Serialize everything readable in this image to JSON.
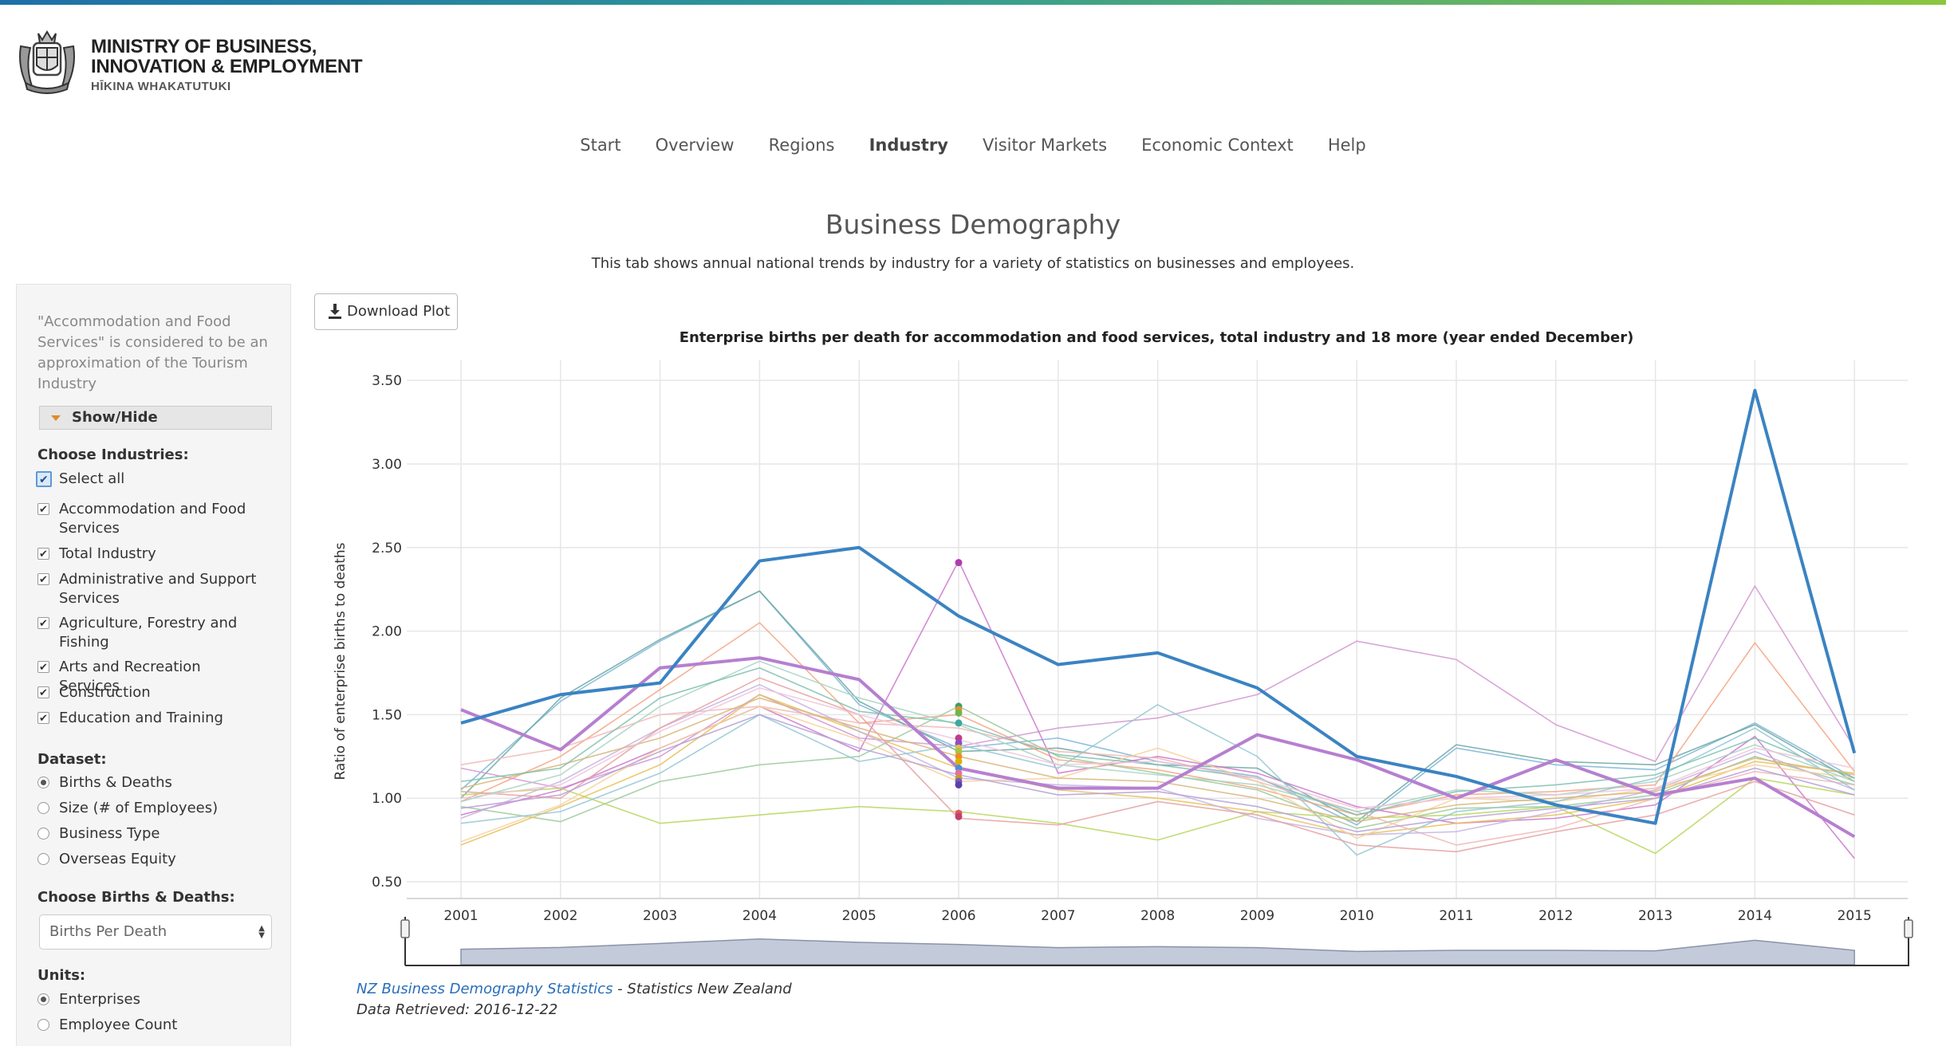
{
  "header": {
    "logo_line1": "MINISTRY OF BUSINESS,",
    "logo_line2": "INNOVATION & EMPLOYMENT",
    "logo_line3": "HĪKINA WHAKATUTUKI"
  },
  "nav": {
    "items": [
      "Start",
      "Overview",
      "Regions",
      "Industry",
      "Visitor Markets",
      "Economic Context",
      "Help"
    ],
    "active": "Industry"
  },
  "page": {
    "title": "Business Demography",
    "subtitle": "This tab shows annual national trends by industry for a variety of statistics on businesses and employees."
  },
  "sidebar": {
    "note": "\"Accommodation and Food Services\" is considered to be an approximation of the Tourism Industry",
    "showhide_label": "Show/Hide",
    "industries_label": "Choose Industries:",
    "select_all_label": "Select all",
    "industries": [
      "Accommodation and Food Services",
      "Total Industry",
      "Administrative and Support Services",
      "Agriculture, Forestry and Fishing",
      "Arts and Recreation Services",
      "Construction",
      "Education and Training"
    ],
    "dataset_label": "Dataset:",
    "datasets": [
      "Births & Deaths",
      "Size (# of Employees)",
      "Business Type",
      "Overseas Equity"
    ],
    "dataset_selected": "Births & Deaths",
    "bd_label": "Choose Births & Deaths:",
    "bd_value": "Births Per Death",
    "units_label": "Units:",
    "units": [
      "Enterprises",
      "Employee Count"
    ],
    "units_selected": "Enterprises"
  },
  "toolbar": {
    "download_label": "Download Plot"
  },
  "chart_data": {
    "type": "line",
    "title": "Enterprise births per death for accommodation and food services, total industry and 18 more (year ended December)",
    "ylabel": "Ratio of enterprise births to deaths",
    "xlabel": "",
    "x": [
      2001,
      2002,
      2003,
      2004,
      2005,
      2006,
      2007,
      2008,
      2009,
      2010,
      2011,
      2012,
      2013,
      2014,
      2015
    ],
    "ylim": [
      0.4,
      3.62
    ],
    "yticks": [
      0.5,
      1.0,
      1.5,
      2.0,
      2.5,
      3.0,
      3.5
    ],
    "ytick_labels": [
      "0.50",
      "1.00",
      "1.50",
      "2.00",
      "2.50",
      "3.00",
      "3.50"
    ],
    "grid": true,
    "series": [
      {
        "color": "#7cb5d9",
        "values": [
          1.05,
          1.58,
          1.94,
          2.24,
          1.56,
          1.3,
          1.36,
          1.22,
          1.13,
          0.84,
          1.3,
          1.2,
          1.17,
          1.45,
          1.12
        ]
      },
      {
        "color": "#69a7a1",
        "values": [
          1.0,
          1.6,
          1.95,
          2.24,
          1.58,
          1.28,
          1.3,
          1.2,
          1.18,
          0.86,
          1.32,
          1.22,
          1.2,
          1.44,
          1.1
        ]
      },
      {
        "color": "#f4a582",
        "values": [
          0.98,
          1.25,
          1.65,
          2.05,
          1.45,
          1.5,
          1.23,
          1.17,
          1.06,
          0.9,
          1.02,
          1.04,
          1.08,
          1.93,
          1.16
        ]
      },
      {
        "color": "#d197d1",
        "values": [
          1.18,
          1.06,
          1.25,
          1.62,
          1.36,
          1.31,
          1.42,
          1.48,
          1.62,
          1.94,
          1.83,
          1.44,
          1.22,
          2.27,
          1.3
        ]
      },
      {
        "color": "#cc77cc",
        "values": [
          0.9,
          1.05,
          1.3,
          1.55,
          1.28,
          2.42,
          1.15,
          1.25,
          1.15,
          0.95,
          0.85,
          0.88,
          0.96,
          1.37,
          0.64
        ]
      },
      {
        "color": "#9ec99b",
        "values": [
          0.95,
          0.86,
          1.1,
          1.2,
          1.25,
          1.55,
          1.25,
          1.15,
          1.05,
          0.82,
          0.94,
          0.95,
          1.02,
          1.25,
          1.08
        ]
      },
      {
        "color": "#e8c15a",
        "values": [
          0.72,
          0.95,
          1.2,
          1.62,
          1.4,
          1.18,
          1.05,
          1.0,
          0.92,
          0.78,
          0.85,
          0.9,
          1.0,
          1.22,
          1.15
        ]
      },
      {
        "color": "#b7d65c",
        "values": [
          1.02,
          1.06,
          0.85,
          0.9,
          0.95,
          0.92,
          0.85,
          0.75,
          0.92,
          0.88,
          0.9,
          0.95,
          0.67,
          1.12,
          1.02
        ]
      },
      {
        "color": "#f2b6b6",
        "values": [
          1.2,
          1.3,
          1.5,
          1.55,
          1.45,
          1.42,
          1.28,
          1.24,
          1.1,
          0.92,
          0.72,
          0.82,
          1.0,
          1.16,
          1.08
        ]
      },
      {
        "color": "#c6b3e0",
        "values": [
          0.88,
          1.1,
          1.42,
          1.68,
          1.4,
          1.12,
          1.08,
          1.06,
          0.88,
          0.78,
          0.8,
          0.92,
          1.05,
          1.28,
          1.05
        ]
      },
      {
        "color": "#f7d19a",
        "values": [
          0.74,
          0.96,
          1.3,
          1.55,
          1.35,
          1.1,
          1.12,
          1.3,
          1.1,
          0.76,
          1.0,
          0.98,
          1.06,
          1.2,
          1.12
        ]
      },
      {
        "color": "#94c7d4",
        "values": [
          0.85,
          0.92,
          1.15,
          1.5,
          1.22,
          1.32,
          1.18,
          1.56,
          1.25,
          0.66,
          0.92,
          0.98,
          1.12,
          1.42,
          1.05
        ]
      },
      {
        "color": "#e6a0a0",
        "values": [
          1.04,
          1.0,
          1.42,
          1.72,
          1.5,
          0.88,
          0.84,
          0.98,
          0.9,
          0.72,
          0.68,
          0.8,
          0.9,
          1.1,
          0.9
        ]
      },
      {
        "color": "#a6d3c2",
        "values": [
          0.98,
          1.14,
          1.55,
          1.82,
          1.6,
          1.44,
          1.2,
          1.14,
          1.08,
          0.92,
          1.05,
          1.02,
          1.1,
          1.32,
          1.1
        ]
      },
      {
        "color": "#d8b67a",
        "values": [
          1.06,
          1.2,
          1.36,
          1.6,
          1.42,
          1.25,
          1.12,
          1.1,
          1.0,
          0.86,
          0.96,
          1.0,
          1.04,
          1.24,
          1.14
        ]
      },
      {
        "color": "#b5a0d6",
        "values": [
          0.94,
          1.02,
          1.28,
          1.5,
          1.3,
          1.14,
          1.02,
          1.04,
          0.95,
          0.8,
          0.88,
          0.94,
          1.0,
          1.18,
          1.02
        ]
      },
      {
        "color": "#7fbfb0",
        "values": [
          1.1,
          1.18,
          1.6,
          1.78,
          1.52,
          1.45,
          1.26,
          1.2,
          1.12,
          0.9,
          1.04,
          1.08,
          1.14,
          1.36,
          1.12
        ]
      },
      {
        "color": "#f0c4dc",
        "values": [
          1.0,
          1.08,
          1.4,
          1.66,
          1.5,
          1.35,
          1.2,
          1.22,
          1.12,
          0.94,
          1.0,
          1.02,
          1.06,
          1.3,
          1.18
        ]
      },
      {
        "color": "#b67fd0",
        "values": [
          1.53,
          1.29,
          1.78,
          1.84,
          1.71,
          1.18,
          1.06,
          1.06,
          1.38,
          1.23,
          1.0,
          1.23,
          1.02,
          1.12,
          0.77
        ]
      },
      {
        "color": "#3b83c2",
        "values": [
          1.45,
          1.62,
          1.69,
          2.42,
          2.5,
          2.09,
          1.8,
          1.87,
          1.66,
          1.25,
          1.13,
          0.96,
          0.85,
          3.44,
          1.27
        ]
      }
    ],
    "markers_2006": [
      2.41,
      1.55,
      1.53,
      1.51,
      1.45,
      1.36,
      1.33,
      1.3,
      1.28,
      1.25,
      1.22,
      1.18,
      1.15,
      1.12,
      1.1,
      1.08,
      0.91,
      0.89
    ],
    "marker_colors": [
      "#b03ab0",
      "#3aa060",
      "#e2903a",
      "#6bb84a",
      "#3fa7a0",
      "#c23a8f",
      "#8a4fc4",
      "#e8b84a",
      "#9fc84a",
      "#f28a2a",
      "#ddb100",
      "#4a90d9",
      "#e870a0",
      "#c0a020",
      "#7a5ac8",
      "#5b3fa8",
      "#e05a5a",
      "#c04070"
    ],
    "navigator": {
      "values": [
        1.45,
        1.62,
        2.0,
        2.42,
        2.1,
        1.9,
        1.6,
        1.7,
        1.6,
        1.25,
        1.35,
        1.35,
        1.3,
        2.3,
        1.35
      ]
    }
  },
  "source": {
    "link_text": "NZ Business Demography Statistics",
    "org": " - Statistics New Zealand",
    "retrieved": "Data Retrieved: 2016-12-22"
  }
}
